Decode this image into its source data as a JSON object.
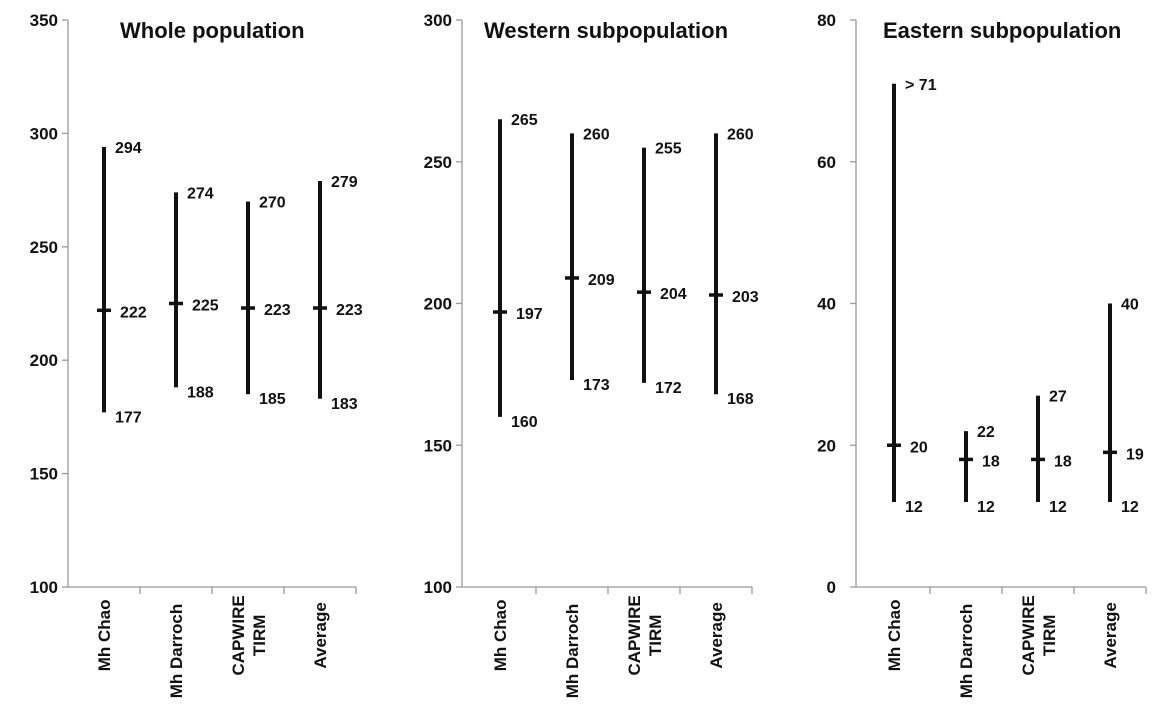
{
  "chart_data": [
    {
      "type": "range",
      "title": "Whole population",
      "ylim": [
        100,
        350
      ],
      "yticks": [
        100,
        150,
        200,
        250,
        300,
        350
      ],
      "categories": [
        [
          "Mh Chao"
        ],
        [
          "Mh Darroch"
        ],
        [
          "CAPWIRE",
          "TIRM"
        ],
        [
          "Average"
        ]
      ],
      "ranges": [
        {
          "low": 177,
          "mid": 222,
          "high": 294,
          "low_label": "177",
          "mid_label": "222",
          "high_label": "294"
        },
        {
          "low": 188,
          "mid": 225,
          "high": 274,
          "low_label": "188",
          "mid_label": "225",
          "high_label": "274"
        },
        {
          "low": 185,
          "mid": 223,
          "high": 270,
          "low_label": "185",
          "mid_label": "223",
          "high_label": "270"
        },
        {
          "low": 183,
          "mid": 223,
          "high": 279,
          "low_label": "183",
          "mid_label": "223",
          "high_label": "279"
        }
      ]
    },
    {
      "type": "range",
      "title": "Western subpopulation",
      "ylim": [
        100,
        300
      ],
      "yticks": [
        100,
        150,
        200,
        250,
        300
      ],
      "categories": [
        [
          "Mh Chao"
        ],
        [
          "Mh Darroch"
        ],
        [
          "CAPWIRE",
          "TIRM"
        ],
        [
          "Average"
        ]
      ],
      "ranges": [
        {
          "low": 160,
          "mid": 197,
          "high": 265,
          "low_label": "160",
          "mid_label": "197",
          "high_label": "265"
        },
        {
          "low": 173,
          "mid": 209,
          "high": 260,
          "low_label": "173",
          "mid_label": "209",
          "high_label": "260"
        },
        {
          "low": 172,
          "mid": 204,
          "high": 255,
          "low_label": "172",
          "mid_label": "204",
          "high_label": "255"
        },
        {
          "low": 168,
          "mid": 203,
          "high": 260,
          "low_label": "168",
          "mid_label": "203",
          "high_label": "260"
        }
      ]
    },
    {
      "type": "range",
      "title": "Eastern subpopulation",
      "ylim": [
        0,
        80
      ],
      "yticks": [
        0,
        20,
        40,
        60,
        80
      ],
      "categories": [
        [
          "Mh Chao"
        ],
        [
          "Mh Darroch"
        ],
        [
          "CAPWIRE",
          "TIRM"
        ],
        [
          "Average"
        ]
      ],
      "ranges": [
        {
          "low": 12,
          "mid": 20,
          "high": 71,
          "low_label": "12",
          "mid_label": "20",
          "high_label": "> 71"
        },
        {
          "low": 12,
          "mid": 18,
          "high": 22,
          "low_label": "12",
          "mid_label": "18",
          "high_label": "22"
        },
        {
          "low": 12,
          "mid": 18,
          "high": 27,
          "low_label": "12",
          "mid_label": "18",
          "high_label": "27"
        },
        {
          "low": 12,
          "mid": 19,
          "high": 40,
          "low_label": "12",
          "mid_label": "19",
          "high_label": "40"
        }
      ]
    }
  ]
}
